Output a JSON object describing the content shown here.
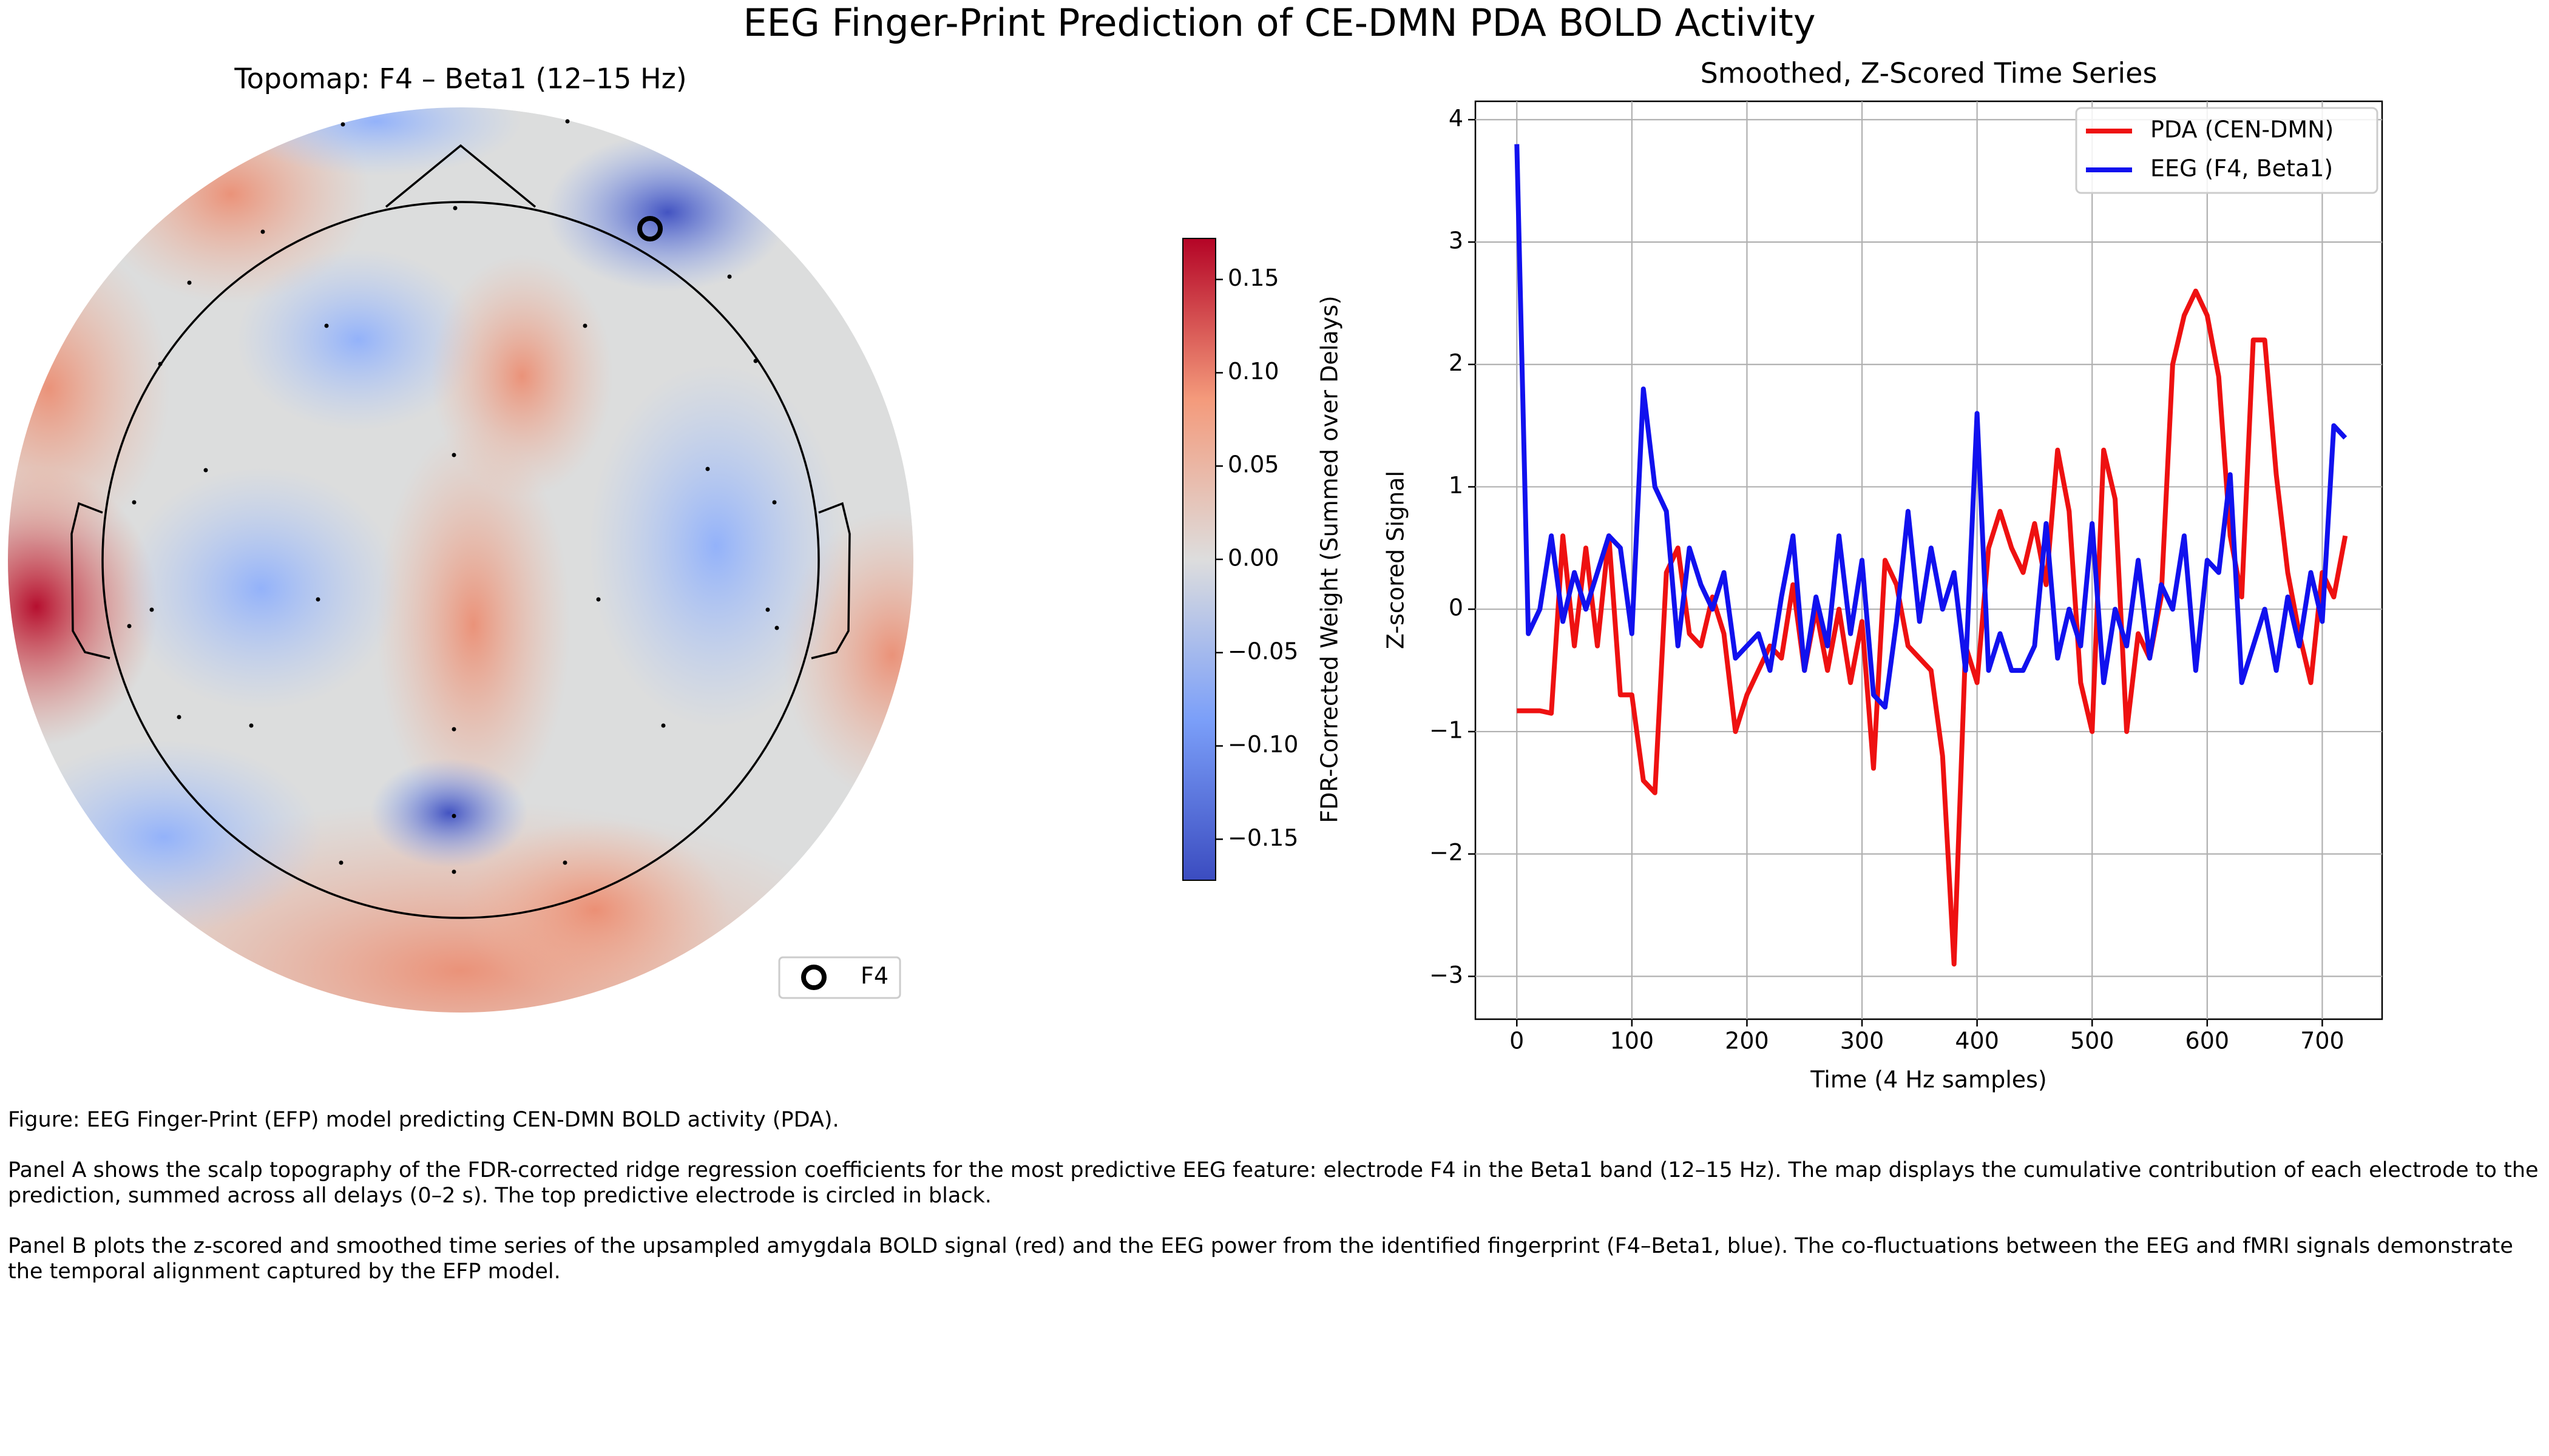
{
  "figure": {
    "title": "EEG Finger-Print Prediction of CE-DMN PDA BOLD Activity",
    "caption": [
      "Figure: EEG Finger-Print (EFP) model predicting CEN-DMN BOLD activity (PDA).",
      "Panel A shows the scalp topography of the FDR-corrected ridge regression coefficients for the most predictive EEG feature: electrode F4 in the Beta1 band (12–15 Hz). The map displays the cumulative contribution of each electrode to the prediction, summed across all delays (0–2 s). The top predictive electrode is circled in black.",
      "Panel B plots the z-scored and smoothed time series of the upsampled amygdala BOLD signal (red) and the EEG power from the identified fingerprint (F4–Beta1, blue). The co-fluctuations between the EEG and fMRI signals demonstrate the temporal alignment captured by the EFP model."
    ]
  },
  "chart_data": [
    {
      "type": "topomap",
      "title": "Topomap: F4 – Beta1 (12–15 Hz)",
      "highlight_label": "F4",
      "colorbar_label": "FDR-Corrected Weight (Summed over Delays)",
      "clim": [
        -0.172,
        0.172
      ],
      "cticks": [
        {
          "value": 0.15,
          "label": "0.15"
        },
        {
          "value": 0.1,
          "label": "0.10"
        },
        {
          "value": 0.05,
          "label": "0.05"
        },
        {
          "value": 0,
          "label": "0.00"
        },
        {
          "value": -0.05,
          "label": "−0.05"
        },
        {
          "value": -0.1,
          "label": "−0.10"
        },
        {
          "value": -0.15,
          "label": "−0.15"
        }
      ]
    },
    {
      "type": "line",
      "title": "Smoothed, Z-Scored Time Series",
      "xlabel": "Time (4 Hz samples)",
      "ylabel": "Z-scored Signal",
      "xlim": [
        -36,
        752
      ],
      "ylim": [
        -3.35,
        4.15
      ],
      "xticks": [
        0,
        100,
        200,
        300,
        400,
        500,
        600,
        700
      ],
      "yticks": [
        {
          "value": -3,
          "label": "−3"
        },
        {
          "value": -2,
          "label": "−2"
        },
        {
          "value": -1,
          "label": "−1"
        },
        0,
        1,
        2,
        3,
        4
      ],
      "grid": true,
      "legend": "upper right",
      "x": [
        0,
        10,
        20,
        30,
        40,
        50,
        60,
        70,
        80,
        90,
        100,
        110,
        120,
        130,
        140,
        150,
        160,
        170,
        180,
        190,
        200,
        210,
        220,
        230,
        240,
        250,
        260,
        270,
        280,
        290,
        300,
        310,
        320,
        330,
        340,
        350,
        360,
        370,
        380,
        390,
        400,
        410,
        420,
        430,
        440,
        450,
        460,
        470,
        480,
        490,
        500,
        510,
        520,
        530,
        540,
        550,
        560,
        570,
        580,
        590,
        600,
        610,
        620,
        630,
        640,
        650,
        660,
        670,
        680,
        690,
        700,
        710,
        720
      ],
      "series": [
        {
          "name": "PDA (CEN-DMN)",
          "color": "#ee1111",
          "values": [
            -0.83,
            -0.83,
            -0.83,
            -0.85,
            0.6,
            -0.3,
            0.5,
            -0.3,
            0.6,
            -0.7,
            -0.7,
            -1.4,
            -1.5,
            0.3,
            0.5,
            -0.2,
            -0.3,
            0.1,
            -0.2,
            -1.0,
            -0.7,
            -0.5,
            -0.3,
            -0.4,
            0.2,
            -0.5,
            0.0,
            -0.5,
            0.0,
            -0.6,
            -0.1,
            -1.3,
            0.4,
            0.2,
            -0.3,
            -0.4,
            -0.5,
            -1.2,
            -2.9,
            -0.3,
            -0.6,
            0.5,
            0.8,
            0.5,
            0.3,
            0.7,
            0.2,
            1.3,
            0.8,
            -0.6,
            -1.0,
            1.3,
            0.9,
            -1.0,
            -0.2,
            -0.4,
            0.1,
            2.0,
            2.4,
            2.6,
            2.4,
            1.9,
            0.6,
            0.1,
            2.2,
            2.2,
            1.1,
            0.3,
            -0.2,
            -0.6,
            0.3,
            0.1,
            0.6
          ]
        },
        {
          "name": "EEG (F4, Beta1)",
          "color": "#1111ee",
          "values": [
            3.8,
            -0.2,
            0.0,
            0.6,
            -0.1,
            0.3,
            0.0,
            0.3,
            0.6,
            0.5,
            -0.2,
            1.8,
            1.0,
            0.8,
            -0.3,
            0.5,
            0.2,
            0.0,
            0.3,
            -0.4,
            -0.3,
            -0.2,
            -0.5,
            0.1,
            0.6,
            -0.5,
            0.1,
            -0.3,
            0.6,
            -0.2,
            0.4,
            -0.7,
            -0.8,
            -0.1,
            0.8,
            -0.1,
            0.5,
            0.0,
            0.3,
            -0.5,
            1.6,
            -0.5,
            -0.2,
            -0.5,
            -0.5,
            -0.3,
            0.7,
            -0.4,
            0.0,
            -0.3,
            0.7,
            -0.6,
            0.0,
            -0.3,
            0.4,
            -0.4,
            0.2,
            0.0,
            0.6,
            -0.5,
            0.4,
            0.3,
            1.1,
            -0.6,
            -0.3,
            0.0,
            -0.5,
            0.1,
            -0.3,
            0.3,
            -0.1,
            1.5,
            1.4
          ]
        }
      ]
    }
  ]
}
